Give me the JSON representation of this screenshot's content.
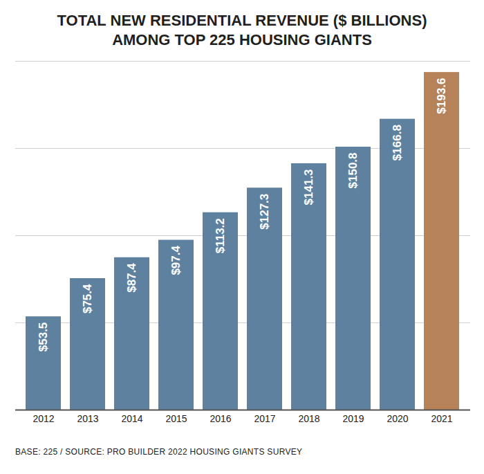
{
  "chart_data": {
    "type": "bar",
    "title": "TOTAL NEW RESIDENTIAL REVENUE ($ BILLIONS)\nAMONG TOP 225 HOUSING GIANTS",
    "caption": "BASE: 225 / SOURCE: PRO BUILDER 2022 HOUSING GIANTS SURVEY",
    "categories": [
      "2012",
      "2013",
      "2014",
      "2015",
      "2016",
      "2017",
      "2018",
      "2019",
      "2020",
      "2021"
    ],
    "values": [
      53.5,
      75.4,
      87.4,
      97.4,
      113.2,
      127.3,
      141.3,
      150.8,
      166.8,
      193.6
    ],
    "value_labels": [
      "$53.5",
      "$75.4",
      "$87.4",
      "$97.4",
      "$113.2",
      "$127.3",
      "$141.3",
      "$150.8",
      "$166.8",
      "$193.6"
    ],
    "colors": [
      "#5f81a0",
      "#5f81a0",
      "#5f81a0",
      "#5f81a0",
      "#5f81a0",
      "#5f81a0",
      "#5f81a0",
      "#5f81a0",
      "#5f81a0",
      "#b5825a"
    ],
    "ylim": [
      0,
      200
    ],
    "yticks": [
      0,
      50,
      100,
      150,
      200
    ],
    "grid": true,
    "data_labels": true,
    "tick_labels": "x"
  }
}
